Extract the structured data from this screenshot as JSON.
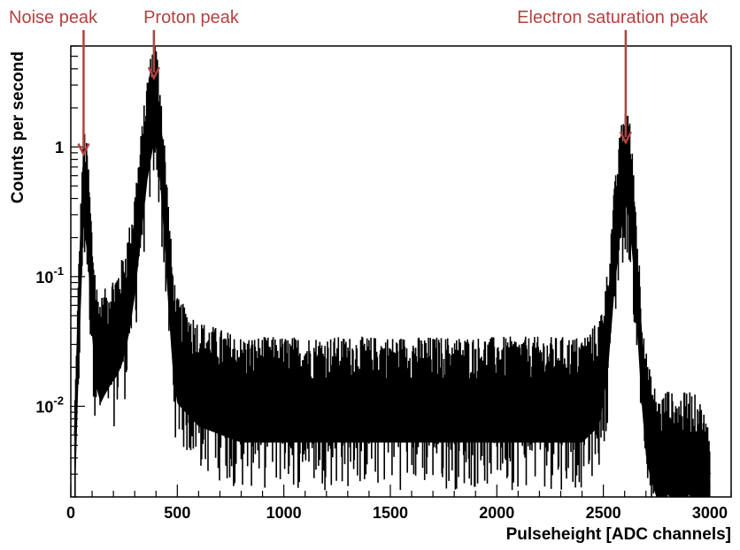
{
  "chart_data": {
    "type": "histogram",
    "title": "",
    "xlabel": "Pulseheight [ADC channels]",
    "ylabel": "Counts per second",
    "xlim": [
      0,
      3100
    ],
    "ylim": [
      0.002,
      6
    ],
    "yscale": "log",
    "grid": false,
    "x_ticks": [
      0,
      500,
      1000,
      1500,
      2000,
      2500,
      3000
    ],
    "y_ticks": [
      {
        "value": 1,
        "label": "1"
      },
      {
        "value": 0.1,
        "label": "10",
        "exponent": "-1"
      },
      {
        "value": 0.01,
        "label": "10",
        "exponent": "-2"
      }
    ],
    "series": [
      {
        "color": "#000000",
        "x": [
          20,
          40,
          60,
          80,
          100,
          120,
          140,
          160,
          180,
          200,
          220,
          240,
          260,
          280,
          300,
          320,
          340,
          360,
          380,
          390,
          400,
          420,
          440,
          460,
          480,
          500,
          600,
          800,
          1000,
          1200,
          1400,
          1600,
          1800,
          2000,
          2200,
          2400,
          2480,
          2520,
          2550,
          2580,
          2600,
          2610,
          2620,
          2640,
          2660,
          2680,
          2700,
          2720,
          2760,
          2800,
          2850,
          2900,
          2950,
          3000
        ],
        "y": [
          0.006,
          0.08,
          0.7,
          0.4,
          0.1,
          0.04,
          0.03,
          0.035,
          0.04,
          0.045,
          0.05,
          0.06,
          0.08,
          0.12,
          0.2,
          0.4,
          0.8,
          1.6,
          2.5,
          3.0,
          2.8,
          1.5,
          0.5,
          0.15,
          0.05,
          0.03,
          0.02,
          0.015,
          0.015,
          0.015,
          0.015,
          0.015,
          0.015,
          0.015,
          0.015,
          0.015,
          0.02,
          0.05,
          0.2,
          0.6,
          0.9,
          1.0,
          0.8,
          0.35,
          0.1,
          0.03,
          0.012,
          0.008,
          0.005,
          0.006,
          0.005,
          0.006,
          0.005,
          0.003
        ]
      }
    ],
    "annotations": [
      {
        "text": "Noise peak",
        "x": 60,
        "y": 0.85,
        "color": "#b5413f"
      },
      {
        "text": "Proton peak",
        "x": 390,
        "y": 3.3,
        "color": "#b5413f"
      },
      {
        "text": "Electron saturation peak",
        "x": 2605,
        "y": 1.05,
        "color": "#b5413f"
      }
    ]
  }
}
